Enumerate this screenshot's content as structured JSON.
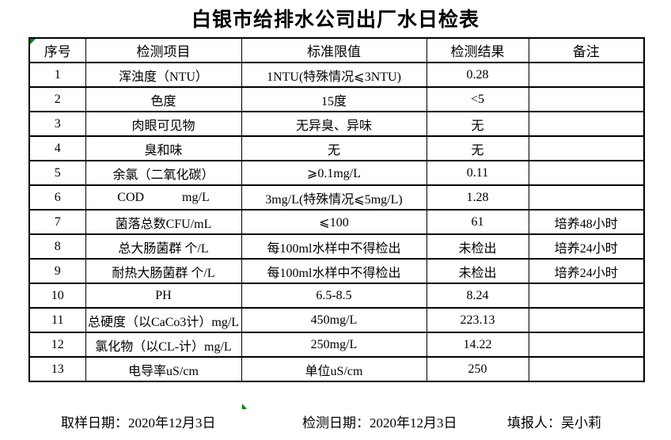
{
  "title": "白银市给排水公司出厂水日检表",
  "colors": {
    "border": "#000000",
    "background": "#ffffff",
    "text": "#000000",
    "marker_green": "#008000"
  },
  "table": {
    "headers": [
      "序号",
      "检测项目",
      "标准限值",
      "检测结果",
      "备注"
    ],
    "rows": [
      {
        "no": "1",
        "item": "浑浊度（NTU）",
        "limit": "1NTU(特殊情况⩽3NTU)",
        "result": "0.28",
        "note": ""
      },
      {
        "no": "2",
        "item": "色度",
        "limit": "15度",
        "result": "<5",
        "note": ""
      },
      {
        "no": "3",
        "item": "肉眼可见物",
        "limit": "无异臭、异味",
        "result": "无",
        "note": ""
      },
      {
        "no": "4",
        "item": "臭和味",
        "limit": "无",
        "result": "无",
        "note": ""
      },
      {
        "no": "5",
        "item": "余氯（二氧化碳）",
        "limit": "⩾0.1mg/L",
        "result": "0.11",
        "note": ""
      },
      {
        "no": "6",
        "item": "COD            mg/L",
        "limit": "3mg/L(特殊情况⩽5mg/L)",
        "result": "1.28",
        "note": ""
      },
      {
        "no": "7",
        "item": "菌落总数CFU/mL",
        "limit": "⩽100",
        "result": "61",
        "note": "培养48小时"
      },
      {
        "no": "8",
        "item": "总大肠菌群 个/L",
        "limit": "每100ml水样中不得检出",
        "result": "未检出",
        "note": "培养24小时"
      },
      {
        "no": "9",
        "item": "耐热大肠菌群 个/L",
        "limit": "每100ml水样中不得检出",
        "result": "未检出",
        "note": "培养24小时"
      },
      {
        "no": "10",
        "item": "PH",
        "limit": "6.5-8.5",
        "result": "8.24",
        "note": ""
      },
      {
        "no": "11",
        "item": "总硬度（以CaCo3计）mg/L",
        "limit": "450mg/L",
        "result": "223.13",
        "note": ""
      },
      {
        "no": "12",
        "item": "氯化物（以CL-计）mg/L",
        "limit": "250mg/L",
        "result": "14.22",
        "note": ""
      },
      {
        "no": "13",
        "item": "电导率uS/cm",
        "limit": "单位uS/cm",
        "result": "250",
        "note": ""
      }
    ]
  },
  "footer": {
    "sample_date_label": "取样日期：2020年12月3日",
    "test_date_label": "检测日期：2020年12月3日",
    "reporter_label": "填报人：吴小莉"
  }
}
